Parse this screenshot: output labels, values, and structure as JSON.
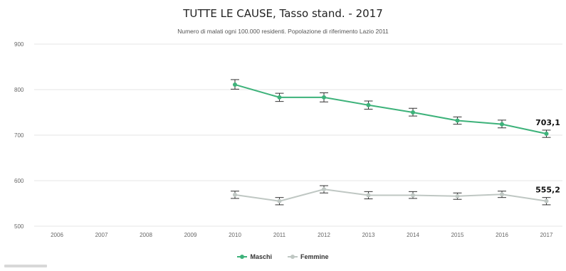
{
  "chart_data": {
    "type": "line",
    "title": "TUTTE LE CAUSE, Tasso stand. - 2017",
    "subtitle": "Numero di malati ogni 100.000 residenti. Popolazione di riferimento Lazio 2011",
    "categories": [
      "2006",
      "2007",
      "2008",
      "2009",
      "2010",
      "2011",
      "2012",
      "2013",
      "2014",
      "2015",
      "2016",
      "2017"
    ],
    "y_ticks": [
      "500",
      "600",
      "700",
      "800",
      "900"
    ],
    "ylim": [
      500,
      900
    ],
    "grid": true,
    "legend_position": "bottom",
    "series": [
      {
        "name": "Maschi",
        "color": "#3db27a",
        "values": [
          null,
          null,
          null,
          null,
          811,
          783,
          783,
          766,
          750,
          732,
          724,
          703.1
        ],
        "ci": [
          [
            null,
            null
          ],
          [
            null,
            null
          ],
          [
            null,
            null
          ],
          [
            null,
            null
          ],
          [
            801,
            822
          ],
          [
            774,
            792
          ],
          [
            773,
            793
          ],
          [
            757,
            775
          ],
          [
            742,
            759
          ],
          [
            724,
            740
          ],
          [
            716,
            733
          ],
          [
            695,
            711
          ]
        ],
        "end_label": "703,1"
      },
      {
        "name": "Femmine",
        "color": "#bfc7c3",
        "values": [
          null,
          null,
          null,
          null,
          569,
          555,
          581,
          568,
          568,
          566,
          570,
          555.2
        ],
        "ci": [
          [
            null,
            null
          ],
          [
            null,
            null
          ],
          [
            null,
            null
          ],
          [
            null,
            null
          ],
          [
            561,
            577
          ],
          [
            547,
            563
          ],
          [
            573,
            589
          ],
          [
            560,
            576
          ],
          [
            561,
            576
          ],
          [
            559,
            573
          ],
          [
            563,
            577
          ],
          [
            547,
            563
          ]
        ],
        "end_label": "555,2"
      }
    ]
  }
}
